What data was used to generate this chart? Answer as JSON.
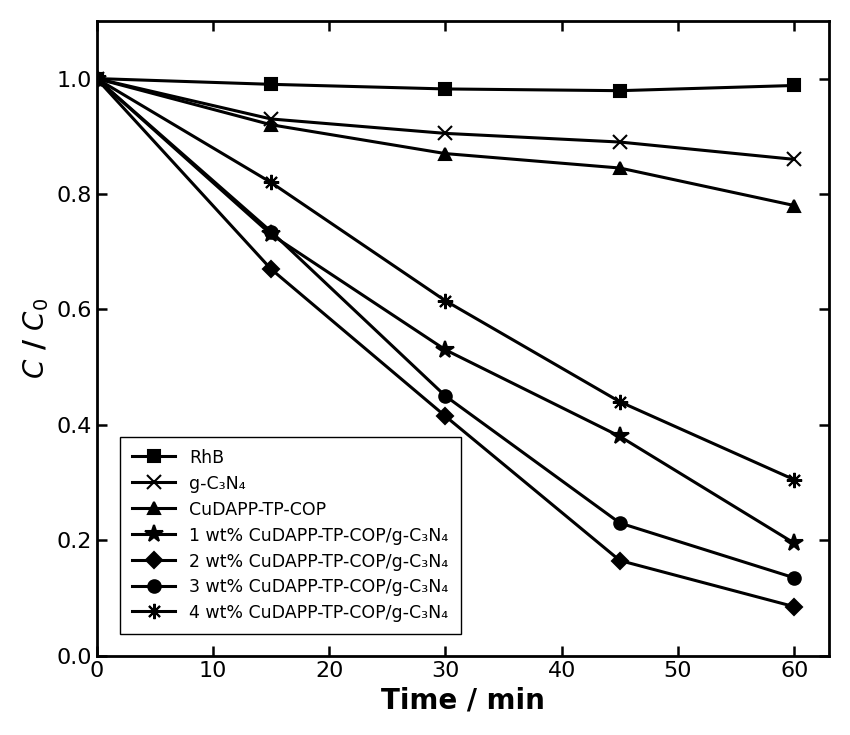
{
  "time": [
    0,
    15,
    30,
    45,
    60
  ],
  "series": [
    {
      "label": "RhB",
      "values": [
        1.0,
        0.99,
        0.982,
        0.979,
        0.988
      ],
      "marker": "s",
      "markersize": 8
    },
    {
      "label": "g-C₃N₄",
      "values": [
        1.0,
        0.93,
        0.905,
        0.89,
        0.86
      ],
      "marker": "x",
      "markersize": 10
    },
    {
      "label": "CuDAPP-TP-COP",
      "values": [
        1.0,
        0.92,
        0.87,
        0.845,
        0.78
      ],
      "marker": "^",
      "markersize": 8
    },
    {
      "label": "1 wt% CuDAPP-TP-COP/g-C₃N₄",
      "values": [
        1.0,
        0.73,
        0.53,
        0.38,
        0.195
      ],
      "marker": "*",
      "markersize": 13
    },
    {
      "label": "2 wt% CuDAPP-TP-COP/g-C₃N₄",
      "values": [
        1.0,
        0.67,
        0.415,
        0.165,
        0.085
      ],
      "marker": "D",
      "markersize": 8
    },
    {
      "label": "3 wt% CuDAPP-TP-COP/g-C₃N₄",
      "values": [
        1.0,
        0.735,
        0.45,
        0.23,
        0.135
      ],
      "marker": "o",
      "markersize": 9
    },
    {
      "label": "4 wt% CuDAPP-TP-COP/g-C₃N₄",
      "values": [
        1.0,
        0.82,
        0.615,
        0.44,
        0.305
      ],
      "marker": "x",
      "markersize": 11
    }
  ],
  "xlabel": "Time / min",
  "ylabel": "$C$ / $C_0$",
  "xlim": [
    0,
    63
  ],
  "ylim": [
    0.0,
    1.1
  ],
  "yticks": [
    0.0,
    0.2,
    0.4,
    0.6,
    0.8,
    1.0
  ],
  "xticks": [
    0,
    10,
    20,
    30,
    40,
    50,
    60
  ],
  "line_color": "black",
  "linewidth": 2.2,
  "legend_fontsize": 12.5,
  "axis_label_fontsize": 20,
  "tick_fontsize": 16,
  "background_color": "#ffffff"
}
